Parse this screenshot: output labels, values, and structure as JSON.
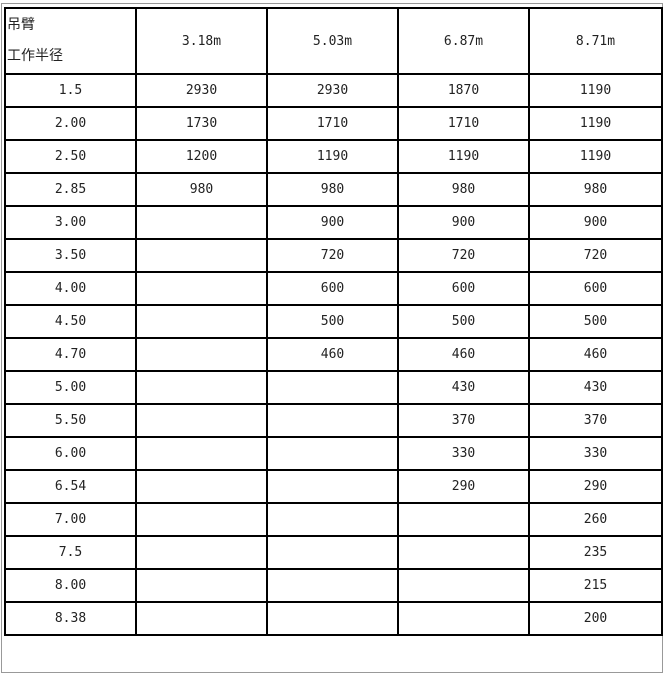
{
  "header": {
    "corner_top": "吊臂",
    "corner_bottom": "工作半径",
    "booms": [
      "3.18m",
      "5.03m",
      "6.87m",
      "8.71m"
    ]
  },
  "rows": [
    {
      "radius": "1.5",
      "values": [
        "2930",
        "2930",
        "1870",
        "1190"
      ]
    },
    {
      "radius": "2.00",
      "values": [
        "1730",
        "1710",
        "1710",
        "1190"
      ]
    },
    {
      "radius": "2.50",
      "values": [
        "1200",
        "1190",
        "1190",
        "1190"
      ]
    },
    {
      "radius": "2.85",
      "values": [
        "980",
        "980",
        "980",
        "980"
      ]
    },
    {
      "radius": "3.00",
      "values": [
        "",
        "900",
        "900",
        "900"
      ]
    },
    {
      "radius": "3.50",
      "values": [
        "",
        "720",
        "720",
        "720"
      ]
    },
    {
      "radius": "4.00",
      "values": [
        "",
        "600",
        "600",
        "600"
      ]
    },
    {
      "radius": "4.50",
      "values": [
        "",
        "500",
        "500",
        "500"
      ]
    },
    {
      "radius": "4.70",
      "values": [
        "",
        "460",
        "460",
        "460"
      ]
    },
    {
      "radius": "5.00",
      "values": [
        "",
        "",
        "430",
        "430"
      ]
    },
    {
      "radius": "5.50",
      "values": [
        "",
        "",
        "370",
        "370"
      ]
    },
    {
      "radius": "6.00",
      "values": [
        "",
        "",
        "330",
        "330"
      ]
    },
    {
      "radius": "6.54",
      "values": [
        "",
        "",
        "290",
        "290"
      ]
    },
    {
      "radius": "7.00",
      "values": [
        "",
        "",
        "",
        "260"
      ]
    },
    {
      "radius": "7.5",
      "values": [
        "",
        "",
        "",
        "235"
      ]
    },
    {
      "radius": "8.00",
      "values": [
        "",
        "",
        "",
        "215"
      ]
    },
    {
      "radius": "8.38",
      "values": [
        "",
        "",
        "",
        "200"
      ]
    }
  ]
}
